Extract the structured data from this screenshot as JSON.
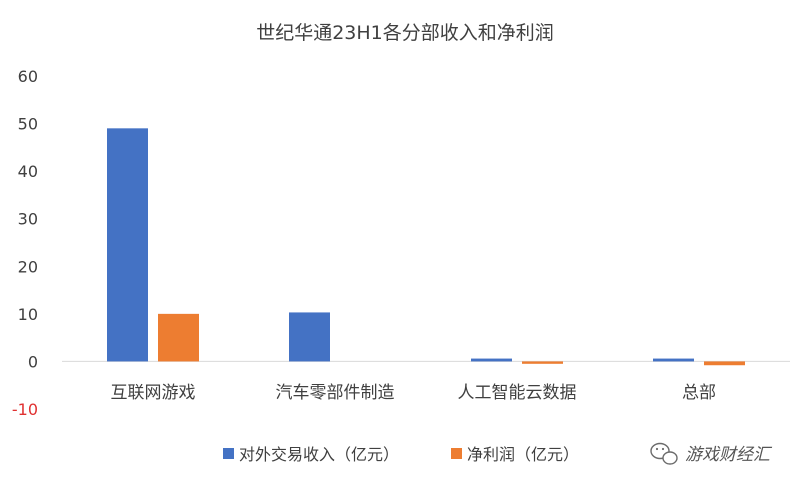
{
  "chart_data": {
    "type": "bar",
    "title": "世纪华通23H1各分部收入和净利润",
    "categories": [
      "互联网游戏",
      "汽车零部件制造",
      "人工智能云数据",
      "总部"
    ],
    "series": [
      {
        "name": "对外交易收入（亿元）",
        "color": "#4472C4",
        "values": [
          49.0,
          10.3,
          0.6,
          0.6
        ]
      },
      {
        "name": "净利润（亿元）",
        "color": "#ED7D31",
        "values": [
          10.0,
          0.0,
          -0.5,
          -0.8
        ]
      }
    ],
    "y_ticks": [
      "60",
      "50",
      "40",
      "30",
      "20",
      "10",
      "0",
      "-10"
    ],
    "ylim": [
      -10,
      60
    ],
    "grid": false,
    "legend_position": "bottom",
    "negative_tick_color": "#E03131"
  },
  "watermark": {
    "text": "游戏财经汇",
    "icon": "wechat-icon"
  }
}
